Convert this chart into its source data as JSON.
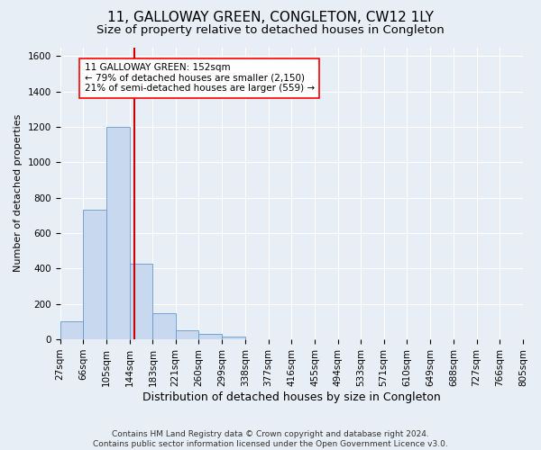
{
  "title": "11, GALLOWAY GREEN, CONGLETON, CW12 1LY",
  "subtitle": "Size of property relative to detached houses in Congleton",
  "xlabel": "Distribution of detached houses by size in Congleton",
  "ylabel": "Number of detached properties",
  "footer_line1": "Contains HM Land Registry data © Crown copyright and database right 2024.",
  "footer_line2": "Contains public sector information licensed under the Open Government Licence v3.0.",
  "property_size": 152,
  "property_label": "11 GALLOWAY GREEN: 152sqm",
  "annotation_line1": "← 79% of detached houses are smaller (2,150)",
  "annotation_line2": "21% of semi-detached houses are larger (559) →",
  "bar_color": "#c8d8ee",
  "bar_edgecolor": "#6699cc",
  "redline_color": "#cc0000",
  "bin_edges": [
    27,
    66,
    105,
    144,
    183,
    221,
    260,
    299,
    338,
    377,
    416,
    455,
    494,
    533,
    571,
    610,
    649,
    688,
    727,
    766,
    805
  ],
  "bar_heights": [
    100,
    730,
    1200,
    430,
    150,
    50,
    30,
    15,
    0,
    0,
    0,
    0,
    0,
    0,
    0,
    0,
    0,
    0,
    0,
    0
  ],
  "ylim": [
    0,
    1650
  ],
  "yticks": [
    0,
    200,
    400,
    600,
    800,
    1000,
    1200,
    1400,
    1600
  ],
  "background_color": "#e8eef6",
  "plot_bg_color": "#e8eef6",
  "grid_color": "#ffffff",
  "title_fontsize": 11,
  "subtitle_fontsize": 9.5,
  "tick_fontsize": 7.5,
  "ylabel_fontsize": 8,
  "xlabel_fontsize": 9,
  "footer_fontsize": 6.5,
  "annotation_fontsize": 7.5
}
